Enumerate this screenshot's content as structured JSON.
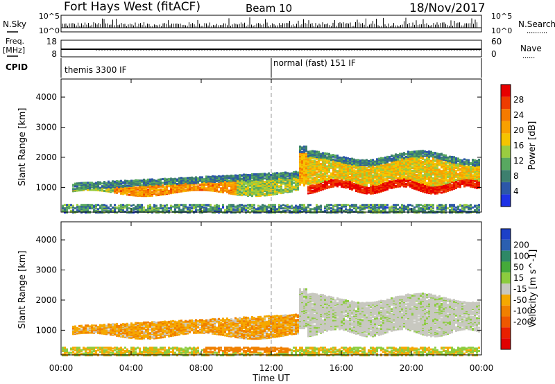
{
  "header": {
    "radar": "Fort Hays West (fitACF)",
    "beam": "Beam 10",
    "date": "18/Nov/2017"
  },
  "top_panels": {
    "nsky_label": "N.Sky",
    "nsky_ticks": [
      "10^5",
      "10^0"
    ],
    "nsearch_label": "N.Search",
    "nsearch_ticks": [
      "10^5",
      "10^0"
    ],
    "freq_label": "Freq.",
    "freq_unit": "[MHz]",
    "freq_ticks": [
      "18",
      "8"
    ],
    "nave_label": "Nave",
    "nave_ticks": [
      "60",
      "0"
    ],
    "cpid_label": "CPID",
    "cpid_modes": [
      "themis 3300 IF",
      "normal (fast) 151 IF"
    ]
  },
  "colors": {
    "power_scale": [
      "#1e32e6",
      "#2c57a8",
      "#3d7f6e",
      "#58a860",
      "#9acc40",
      "#f5c400",
      "#f9a000",
      "#f57a00",
      "#ee3c00",
      "#e80000"
    ],
    "velocity_scale": [
      "#1d40c8",
      "#2b5fb0",
      "#2e8866",
      "#45aa3a",
      "#8ccc3e",
      "#c8c8c0",
      "#f5a800",
      "#f08000",
      "#ee5800",
      "#e82000",
      "#e00000"
    ],
    "grey": "#c8c8c0"
  },
  "chart_data": [
    {
      "type": "heatmap",
      "name": "power",
      "ylabel": "Slant Range [km]",
      "x_ticks": [
        "00:00",
        "04:00",
        "08:00",
        "12:00",
        "16:00",
        "20:00",
        "00:00"
      ],
      "xlim_hours": [
        0,
        24
      ],
      "y_ticks": [
        1000,
        2000,
        3000,
        4000
      ],
      "ylim_km": [
        180,
        4600
      ],
      "colorbar": {
        "label": "Power [dB]",
        "ticks": [
          4,
          8,
          12,
          16,
          20,
          24,
          28
        ],
        "range": [
          0,
          32
        ]
      },
      "echo_regions": [
        {
          "t_start": 0.6,
          "t_end": 13.5,
          "range_low": 850,
          "range_high": 1450,
          "peak_db": 24
        },
        {
          "t_start": 13.6,
          "t_end": 24,
          "range_low": 900,
          "range_high": 2200,
          "peak_db": 30
        },
        {
          "t_start": 0,
          "t_end": 24,
          "range_low": 180,
          "range_high": 480,
          "peak_db": 10
        }
      ],
      "dashed_line_hours": 12
    },
    {
      "type": "heatmap",
      "name": "velocity",
      "ylabel": "Slant Range [km]",
      "x_ticks": [
        "00:00",
        "04:00",
        "08:00",
        "12:00",
        "16:00",
        "20:00",
        "00:00"
      ],
      "xlim_hours": [
        0,
        24
      ],
      "y_ticks": [
        1000,
        2000,
        3000,
        4000
      ],
      "ylim_km": [
        180,
        4600
      ],
      "colorbar": {
        "label": "Velocity [m s^-1]",
        "ticks": [
          200,
          100,
          50,
          15,
          -15,
          -50,
          -100,
          -200
        ]
      },
      "dashed_line_hours": 12
    }
  ],
  "xlabel": "Time UT"
}
